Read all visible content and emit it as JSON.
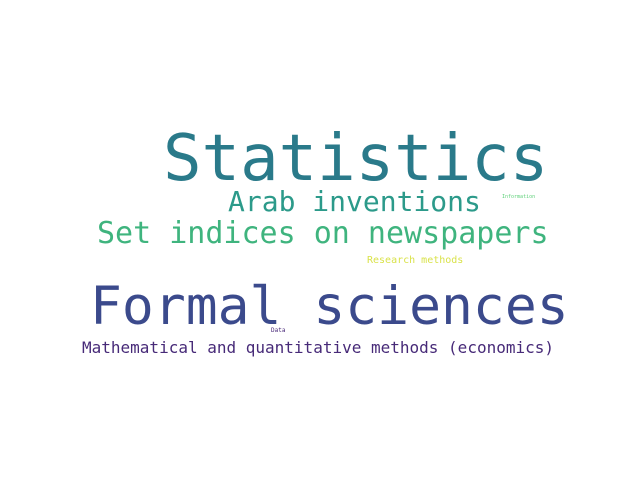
{
  "words": [
    {
      "id": "statistics",
      "text": "Statistics",
      "color": "#2a7a8a"
    },
    {
      "id": "arab",
      "text": "Arab inventions",
      "color": "#2c9a8a"
    },
    {
      "id": "information",
      "text": "Information",
      "color": "#5fd17a"
    },
    {
      "id": "set",
      "text": "Set indices on newspapers",
      "color": "#3fb47e"
    },
    {
      "id": "research",
      "text": "Research methods",
      "color": "#d9e24a"
    },
    {
      "id": "formal",
      "text": "Formal sciences",
      "color": "#3b4a8c"
    },
    {
      "id": "data",
      "text": "Data",
      "color": "#4a2a7a"
    },
    {
      "id": "math",
      "text": "Mathematical and quantitative methods (economics)",
      "color": "#472a78"
    }
  ]
}
